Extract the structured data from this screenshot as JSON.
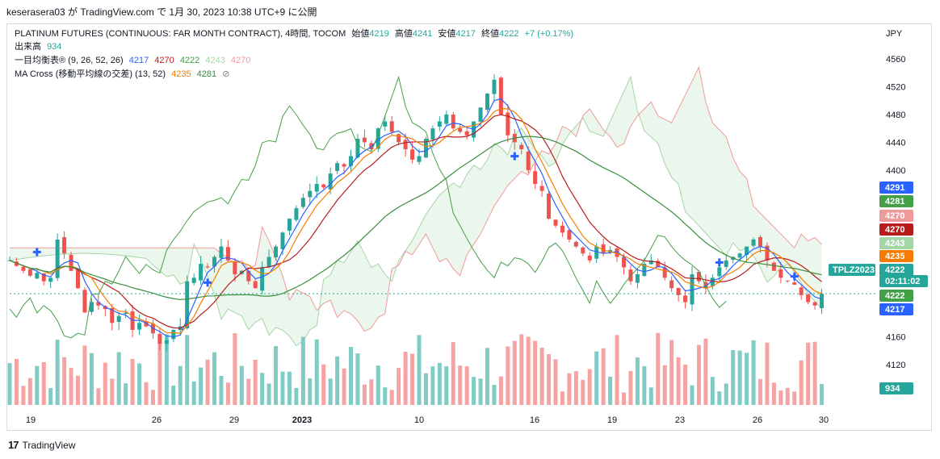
{
  "header": {
    "publish_line": "keserasera03 が TradingView.com で 1月 30, 2023 10:38 UTC+9 に公開"
  },
  "legend": {
    "symbol_line": {
      "title": "PLATINUM FUTURES (CONTINUOUS: FAR MONTH CONTRACT), 4時間, TOCOM",
      "open_label": "始値",
      "open": "4219",
      "high_label": "高値",
      "high": "4241",
      "low_label": "安値",
      "low": "4217",
      "close_label": "終値",
      "close": "4222",
      "change": "+7 (+0.17%)"
    },
    "volume_line": {
      "label": "出来高",
      "value": "934"
    },
    "ichimoku_line": {
      "label": "一目均衡表® (9, 26, 52, 26)",
      "v1": "4217",
      "v2": "4270",
      "v3": "4222",
      "v4": "4243",
      "v5": "4270"
    },
    "ma_line": {
      "label": "MA Cross (移動平均線の交差) (13, 52)",
      "v1": "4235",
      "v2": "4281",
      "icon": "⊘"
    }
  },
  "footer": {
    "brand": "TradingView",
    "logo": "17"
  },
  "colors": {
    "up": "#26a69a",
    "down": "#ef5350",
    "tenkan": "#2962ff",
    "kijun": "#b71c1c",
    "chikou": "#43a047",
    "span_a": "#a5d6a7",
    "span_b": "#ef9a9a",
    "ma_fast": "#f57c00",
    "ma_slow": "#388e3c",
    "vol_up": "#80cbc4",
    "vol_down": "#f5a3a3"
  },
  "chart_data": {
    "type": "candlestick",
    "y_axis": {
      "unit": "JPY",
      "ticks": [
        4120,
        4160,
        4200,
        4240,
        4280,
        4320,
        4360,
        4400,
        4440,
        4480,
        4520,
        4560
      ],
      "tick_labels": [
        "4120",
        "4160",
        "",
        "",
        "",
        "",
        "",
        "4400",
        "4440",
        "4480",
        "4520",
        "4560"
      ]
    },
    "x_axis": {
      "labels": [
        "19",
        "26",
        "29",
        "2023",
        "10",
        "16",
        "19",
        "23",
        "26",
        "30"
      ]
    },
    "price_tags": [
      {
        "text": "4291",
        "value": 4291,
        "color": "#2962ff"
      },
      {
        "text": "4281",
        "value": 4281,
        "color": "#43a047"
      },
      {
        "text": "4270",
        "value": 4270,
        "color": "#ef9a9a"
      },
      {
        "text": "4270",
        "value": 4270,
        "color": "#b71c1c"
      },
      {
        "text": "4243",
        "value": 4243,
        "color": "#a5d6a7"
      },
      {
        "text": "4235",
        "value": 4235,
        "color": "#f57c00"
      },
      {
        "text": "4222",
        "value": 4222,
        "color": "#26a69a"
      },
      {
        "text": "02:11:02",
        "value": 4222,
        "color": "#26a69a"
      },
      {
        "text": "4222",
        "value": 4222,
        "color": "#43a047"
      },
      {
        "text": "4217",
        "value": 4217,
        "color": "#2962ff"
      }
    ],
    "symbol_tag": "TPLZ2023",
    "volume_tag": "934",
    "last_price": 4222,
    "series_count": 120
  }
}
